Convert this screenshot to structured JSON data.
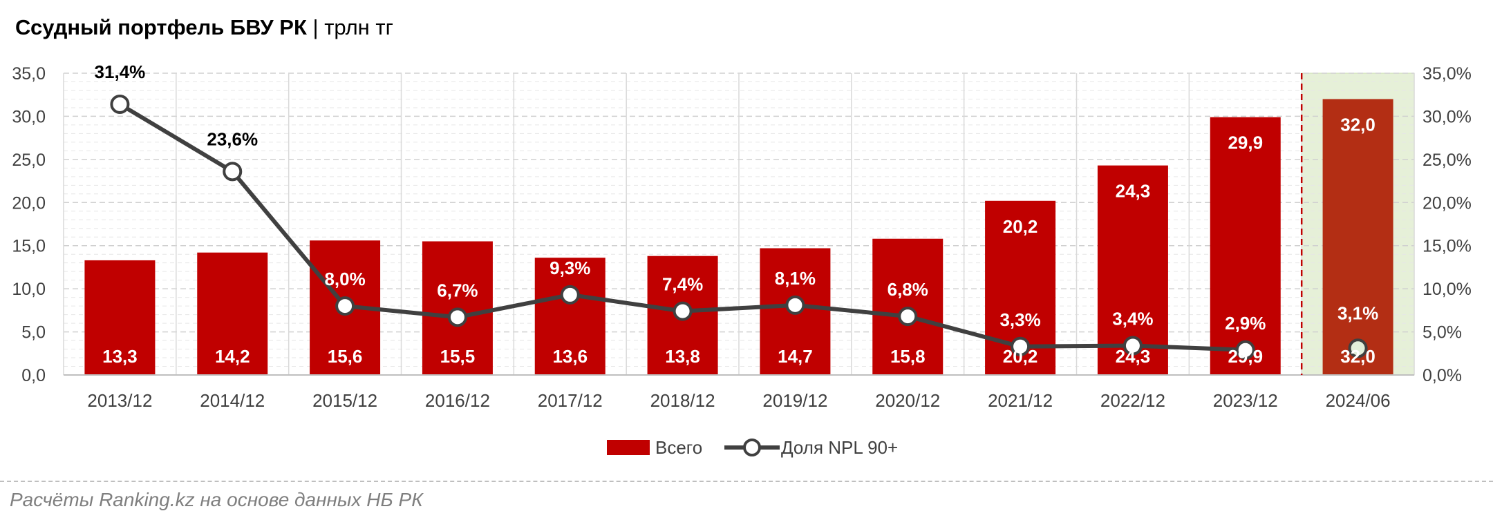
{
  "title": {
    "main": "Ссудный портфель БВУ РК",
    "separator": "|",
    "unit": "трлн тг"
  },
  "source": "Расчёты Ranking.kz на основе данных НБ РК",
  "colors": {
    "bar": "#c00000",
    "bar_highlight": "#b32e14",
    "highlight_bg": "#e6f0d8",
    "line": "#404040",
    "marker_fill": "#ffffff",
    "marker_fill_highlight": "#e2efda",
    "divider": "#c00000"
  },
  "chart_data": {
    "type": "bar",
    "categories": [
      "2013/12",
      "2014/12",
      "2015/12",
      "2016/12",
      "2017/12",
      "2018/12",
      "2019/12",
      "2020/12",
      "2021/12",
      "2022/12",
      "2023/12",
      "2024/06"
    ],
    "series": [
      {
        "name": "Всего",
        "type": "bar",
        "axis": "left",
        "values": [
          13.3,
          14.2,
          15.6,
          15.5,
          13.6,
          13.8,
          14.7,
          15.8,
          20.2,
          24.3,
          29.9,
          32.0
        ],
        "labels": [
          "13,3",
          "14,2",
          "15,6",
          "15,5",
          "13,6",
          "13,8",
          "14,7",
          "15,8",
          "20,2",
          "24,3",
          "29,9",
          "32,0"
        ]
      },
      {
        "name": "Доля NPL 90+",
        "type": "line",
        "axis": "right",
        "values": [
          31.4,
          23.6,
          8.0,
          6.7,
          9.3,
          7.4,
          8.1,
          6.8,
          3.3,
          3.4,
          2.9,
          3.1
        ],
        "labels": [
          "31,4%",
          "23,6%",
          "8,0%",
          "6,7%",
          "9,3%",
          "7,4%",
          "8,1%",
          "6,8%",
          "3,3%",
          "3,4%",
          "2,9%",
          "3,1%"
        ]
      }
    ],
    "left_axis": {
      "min": 0,
      "max": 35,
      "step": 5,
      "tick_labels": [
        "0,0",
        "5,0",
        "10,0",
        "15,0",
        "20,0",
        "25,0",
        "30,0",
        "35,0"
      ]
    },
    "right_axis": {
      "min": 0,
      "max": 35,
      "step": 5,
      "unit": "%",
      "tick_labels": [
        "0,0%",
        "5,0%",
        "10,0%",
        "15,0%",
        "20,0%",
        "25,0%",
        "30,0%",
        "35,0%"
      ]
    },
    "highlight_category": "2024/06",
    "grid": true,
    "legend_position": "bottom"
  }
}
